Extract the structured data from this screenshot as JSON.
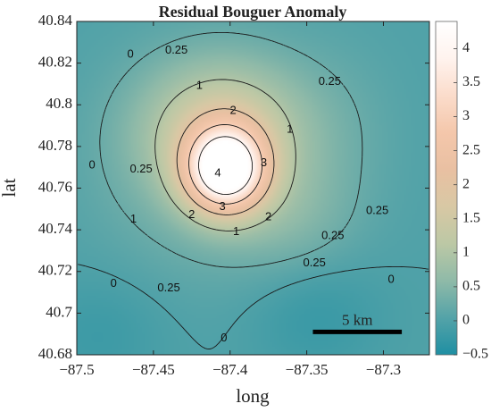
{
  "chart_data": {
    "type": "heatmap",
    "title": "Residual Bouguer Anomaly",
    "xlabel": "long",
    "ylabel": "lat",
    "xlim": [
      -87.5,
      -87.27
    ],
    "ylim": [
      40.68,
      40.84
    ],
    "x_ticks": [
      -87.5,
      -87.45,
      -87.4,
      -87.35,
      -87.3
    ],
    "x_tick_labels": [
      "−87.5",
      "−87.45",
      "−87.4",
      "−87.35",
      "−87.3"
    ],
    "y_ticks": [
      40.68,
      40.7,
      40.72,
      40.74,
      40.76,
      40.78,
      40.8,
      40.82,
      40.84
    ],
    "y_tick_labels": [
      "40.68",
      "40.7",
      "40.72",
      "40.74",
      "40.76",
      "40.78",
      "40.8",
      "40.82",
      "40.84"
    ],
    "colorbar": {
      "range": [
        -0.5,
        4.4
      ],
      "ticks": [
        -0.5,
        0,
        0.5,
        1,
        1.5,
        2,
        2.5,
        3,
        3.5,
        4
      ],
      "tick_labels": [
        "−0.5",
        "0",
        "0.5",
        "1",
        "1.5",
        "2",
        "2.5",
        "3",
        "3.5",
        "4"
      ],
      "colors": [
        "#1f8fa3",
        "#54a3a8",
        "#8fbaa8",
        "#bcc8a5",
        "#d8c8a4",
        "#e9c0a2",
        "#f4c7ab",
        "#fbdccb",
        "#fff3ee",
        "#ffffff"
      ]
    },
    "contour_levels": [
      0,
      0.25,
      1,
      2,
      3,
      4
    ],
    "contour_labels": [
      {
        "text": "0",
        "x": -87.465,
        "y": 40.824
      },
      {
        "text": "0.25",
        "x": -87.435,
        "y": 40.826
      },
      {
        "text": "0.25",
        "x": -87.335,
        "y": 40.811
      },
      {
        "text": "1",
        "x": -87.42,
        "y": 40.809
      },
      {
        "text": "2",
        "x": -87.398,
        "y": 40.797
      },
      {
        "text": "1",
        "x": -87.361,
        "y": 40.788
      },
      {
        "text": "0",
        "x": -87.49,
        "y": 40.771
      },
      {
        "text": "0.25",
        "x": -87.458,
        "y": 40.769
      },
      {
        "text": "3",
        "x": -87.378,
        "y": 40.772
      },
      {
        "text": "4",
        "x": -87.408,
        "y": 40.767
      },
      {
        "text": "3",
        "x": -87.405,
        "y": 40.751
      },
      {
        "text": "2",
        "x": -87.425,
        "y": 40.747
      },
      {
        "text": "2",
        "x": -87.375,
        "y": 40.746
      },
      {
        "text": "1",
        "x": -87.463,
        "y": 40.745
      },
      {
        "text": "1",
        "x": -87.396,
        "y": 40.739
      },
      {
        "text": "0.25",
        "x": -87.304,
        "y": 40.749
      },
      {
        "text": "0.25",
        "x": -87.333,
        "y": 40.737
      },
      {
        "text": "0.25",
        "x": -87.345,
        "y": 40.724
      },
      {
        "text": "0",
        "x": -87.476,
        "y": 40.714
      },
      {
        "text": "0.25",
        "x": -87.44,
        "y": 40.712
      },
      {
        "text": "0",
        "x": -87.404,
        "y": 40.688
      },
      {
        "text": "0",
        "x": -87.295,
        "y": 40.716
      }
    ],
    "scale_bar": {
      "label": "5 km",
      "x_start": -87.346,
      "x_end": -87.288,
      "y": 40.691
    },
    "features": [
      {
        "value": 4.4,
        "x": -87.403,
        "y": 40.769,
        "sx": 0.018,
        "sy": 0.014
      },
      {
        "value": 1.2,
        "x": -87.405,
        "y": 40.789,
        "sx": 0.035,
        "sy": 0.022
      },
      {
        "value": 0.5,
        "x": -87.412,
        "y": 40.772,
        "sx": 0.05,
        "sy": 0.036
      },
      {
        "value": 0.3,
        "x": -87.36,
        "y": 40.745,
        "sx": 0.03,
        "sy": 0.02
      },
      {
        "value": 0.15,
        "x": -87.33,
        "y": 40.79,
        "sx": 0.03,
        "sy": 0.03
      },
      {
        "value": -0.25,
        "x": -87.345,
        "y": 40.7,
        "sx": 0.03,
        "sy": 0.02
      },
      {
        "value": -0.2,
        "x": -87.485,
        "y": 40.69,
        "sx": 0.03,
        "sy": 0.02
      }
    ]
  }
}
